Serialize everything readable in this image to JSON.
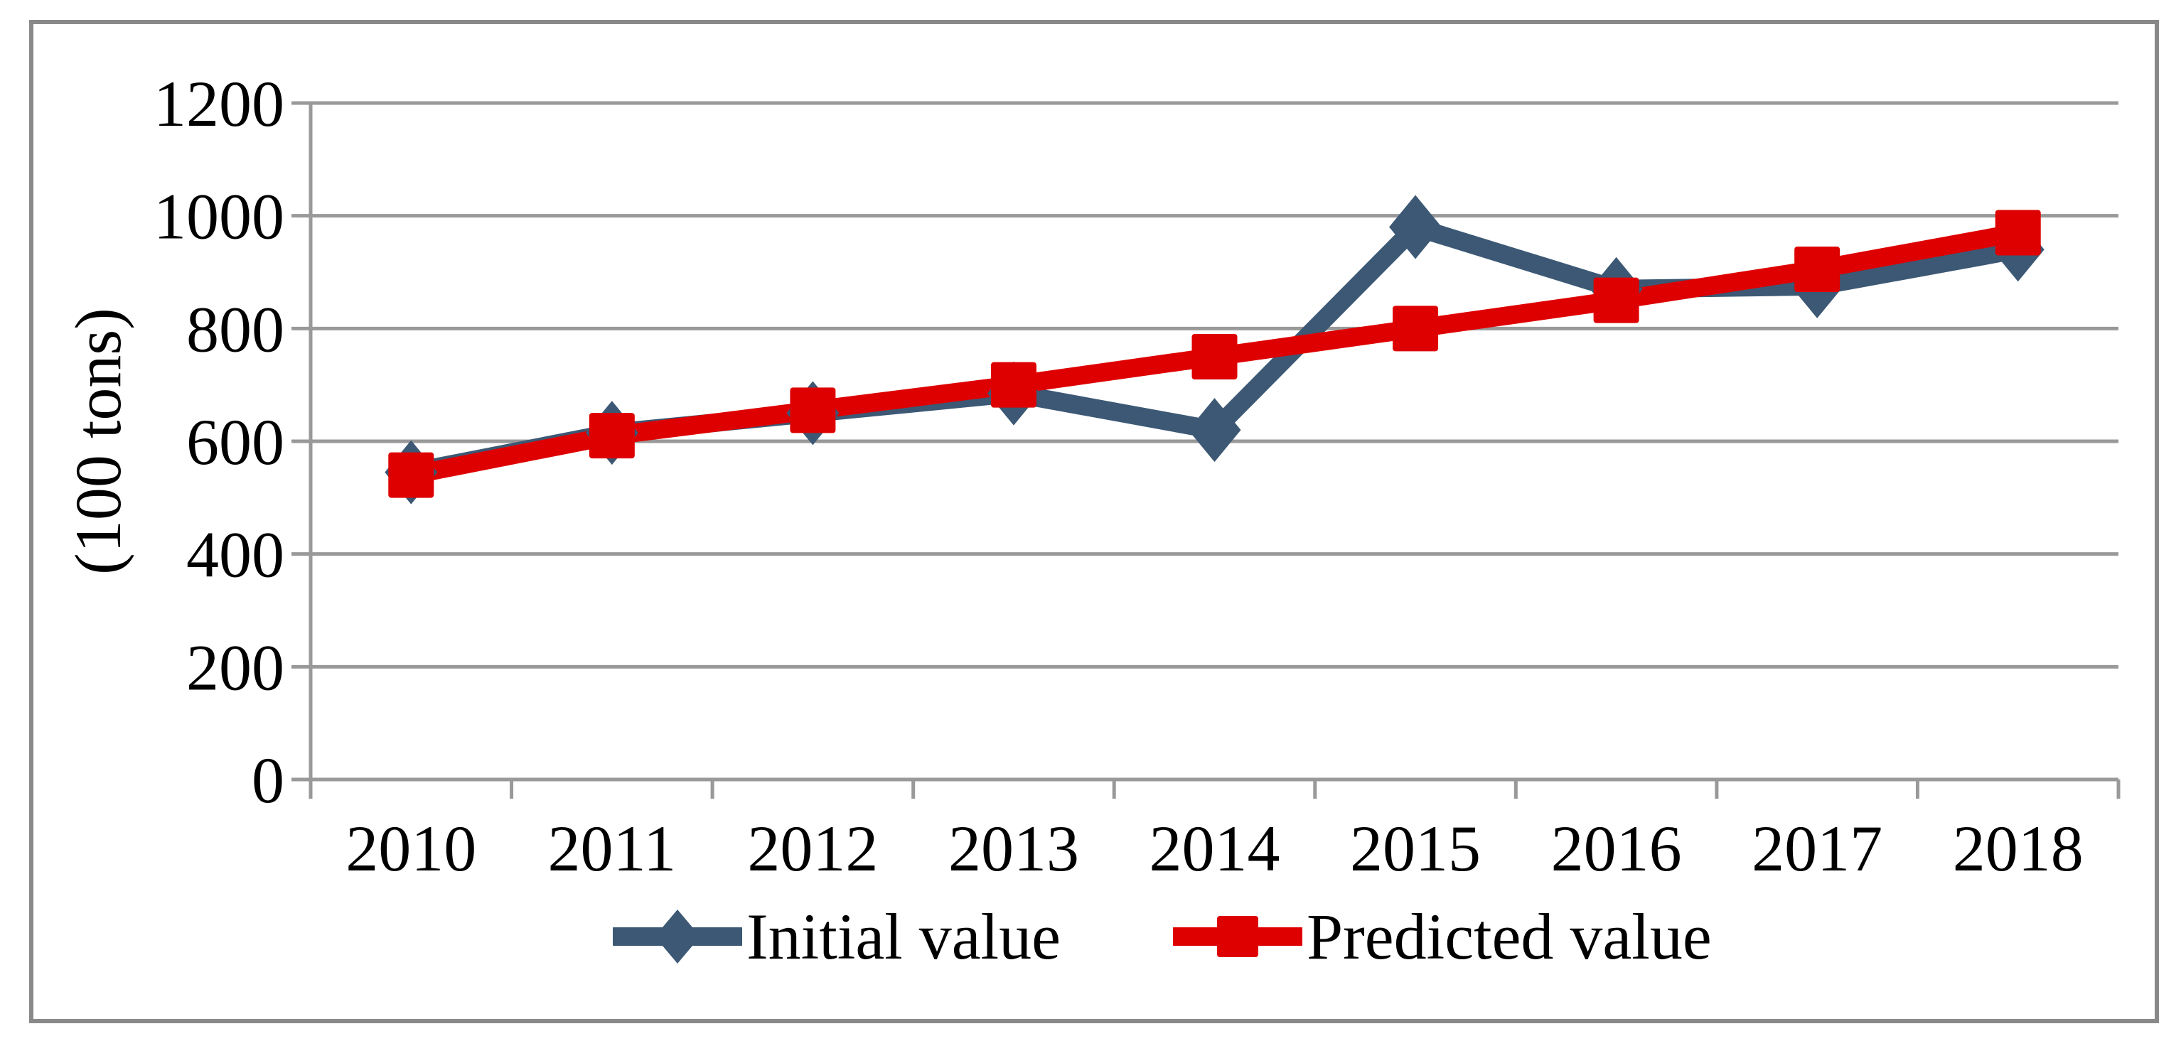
{
  "figure": {
    "frame_color": "#898989",
    "background": "#ffffff"
  },
  "y_axis": {
    "title": "(100 tons)"
  },
  "chart_data": {
    "type": "line",
    "title": "",
    "xlabel": "",
    "ylabel": "(100 tons)",
    "categories": [
      "2010",
      "2011",
      "2012",
      "2013",
      "2014",
      "2015",
      "2016",
      "2017",
      "2018"
    ],
    "series": [
      {
        "name": "Initial value",
        "color": "#3c5874",
        "marker": "diamond",
        "values": [
          545,
          615,
          650,
          685,
          620,
          980,
          870,
          875,
          940
        ]
      },
      {
        "name": "Predicted value",
        "color": "#de0000",
        "marker": "square",
        "values": [
          540,
          610,
          655,
          700,
          750,
          800,
          850,
          905,
          970
        ]
      }
    ],
    "ylim": [
      0,
      1200
    ],
    "yticks": [
      0,
      200,
      400,
      600,
      800,
      1000,
      1200
    ],
    "grid": true,
    "gridline_color": "#999999",
    "axis_color": "#999999",
    "legend_position": "bottom"
  }
}
